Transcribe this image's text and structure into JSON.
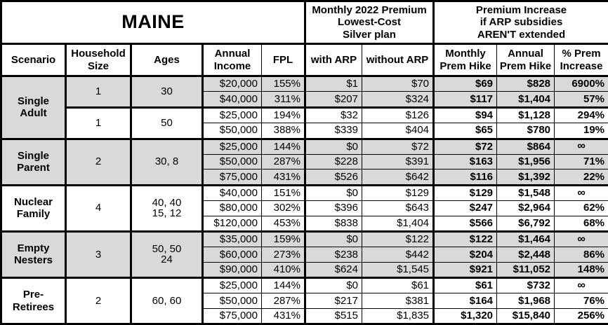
{
  "title": "MAINE",
  "headers": {
    "premium": "Monthly 2022 Premium\nLowest-Cost\nSilver plan",
    "increase": "Premium Increase\nif ARP subsidies\nAREN'T extended"
  },
  "columns": {
    "scenario": "Scenario",
    "household": "Household\nSize",
    "ages": "Ages",
    "income": "Annual\nIncome",
    "fpl": "FPL",
    "with_arp": "with ARP",
    "without_arp": "without ARP",
    "monthly": "Monthly\nPrem Hike",
    "annual": "Annual\nPrem Hike",
    "pct": "% Prem\nIncrease"
  },
  "colors": {
    "shaded_row_bg": "#d9d9d9",
    "unshaded_row_bg": "#ffffff",
    "border": "#000000",
    "text": "#000000"
  },
  "groups": [
    {
      "scenario": "Single\nAdult",
      "subgroups": [
        {
          "household": "1",
          "ages": "30",
          "shaded": true,
          "rows": [
            {
              "income": "$20,000",
              "fpl": "155%",
              "with_arp": "$1",
              "without_arp": "$70",
              "monthly_hike": "$69",
              "annual_hike": "$828",
              "pct_increase": "6900%"
            },
            {
              "income": "$40,000",
              "fpl": "311%",
              "with_arp": "$207",
              "without_arp": "$324",
              "monthly_hike": "$117",
              "annual_hike": "$1,404",
              "pct_increase": "57%"
            }
          ]
        },
        {
          "household": "1",
          "ages": "50",
          "shaded": false,
          "rows": [
            {
              "income": "$25,000",
              "fpl": "194%",
              "with_arp": "$32",
              "without_arp": "$126",
              "monthly_hike": "$94",
              "annual_hike": "$1,128",
              "pct_increase": "294%"
            },
            {
              "income": "$50,000",
              "fpl": "388%",
              "with_arp": "$339",
              "without_arp": "$404",
              "monthly_hike": "$65",
              "annual_hike": "$780",
              "pct_increase": "19%"
            }
          ]
        }
      ]
    },
    {
      "scenario": "Single\nParent",
      "subgroups": [
        {
          "household": "2",
          "ages": "30, 8",
          "shaded": true,
          "rows": [
            {
              "income": "$25,000",
              "fpl": "144%",
              "with_arp": "$0",
              "without_arp": "$72",
              "monthly_hike": "$72",
              "annual_hike": "$864",
              "pct_increase": "∞"
            },
            {
              "income": "$50,000",
              "fpl": "287%",
              "with_arp": "$228",
              "without_arp": "$391",
              "monthly_hike": "$163",
              "annual_hike": "$1,956",
              "pct_increase": "71%"
            },
            {
              "income": "$75,000",
              "fpl": "431%",
              "with_arp": "$526",
              "without_arp": "$642",
              "monthly_hike": "$116",
              "annual_hike": "$1,392",
              "pct_increase": "22%"
            }
          ]
        }
      ]
    },
    {
      "scenario": "Nuclear\nFamily",
      "subgroups": [
        {
          "household": "4",
          "ages": "40, 40\n15, 12",
          "shaded": false,
          "rows": [
            {
              "income": "$40,000",
              "fpl": "151%",
              "with_arp": "$0",
              "without_arp": "$129",
              "monthly_hike": "$129",
              "annual_hike": "$1,548",
              "pct_increase": "∞"
            },
            {
              "income": "$80,000",
              "fpl": "302%",
              "with_arp": "$396",
              "without_arp": "$643",
              "monthly_hike": "$247",
              "annual_hike": "$2,964",
              "pct_increase": "62%"
            },
            {
              "income": "$120,000",
              "fpl": "453%",
              "with_arp": "$838",
              "without_arp": "$1,404",
              "monthly_hike": "$566",
              "annual_hike": "$6,792",
              "pct_increase": "68%"
            }
          ]
        }
      ]
    },
    {
      "scenario": "Empty\nNesters",
      "subgroups": [
        {
          "household": "3",
          "ages": "50, 50\n24",
          "shaded": true,
          "rows": [
            {
              "income": "$35,000",
              "fpl": "159%",
              "with_arp": "$0",
              "without_arp": "$122",
              "monthly_hike": "$122",
              "annual_hike": "$1,464",
              "pct_increase": "∞"
            },
            {
              "income": "$60,000",
              "fpl": "273%",
              "with_arp": "$238",
              "without_arp": "$442",
              "monthly_hike": "$204",
              "annual_hike": "$2,448",
              "pct_increase": "86%"
            },
            {
              "income": "$90,000",
              "fpl": "410%",
              "with_arp": "$624",
              "without_arp": "$1,545",
              "monthly_hike": "$921",
              "annual_hike": "$11,052",
              "pct_increase": "148%"
            }
          ]
        }
      ]
    },
    {
      "scenario": "Pre-\nRetirees",
      "subgroups": [
        {
          "household": "2",
          "ages": "60, 60",
          "shaded": false,
          "rows": [
            {
              "income": "$25,000",
              "fpl": "144%",
              "with_arp": "$0",
              "without_arp": "$61",
              "monthly_hike": "$61",
              "annual_hike": "$732",
              "pct_increase": "∞"
            },
            {
              "income": "$50,000",
              "fpl": "287%",
              "with_arp": "$217",
              "without_arp": "$381",
              "monthly_hike": "$164",
              "annual_hike": "$1,968",
              "pct_increase": "76%"
            },
            {
              "income": "$75,000",
              "fpl": "431%",
              "with_arp": "$515",
              "without_arp": "$1,835",
              "monthly_hike": "$1,320",
              "annual_hike": "$15,840",
              "pct_increase": "256%"
            }
          ]
        }
      ]
    }
  ],
  "chart_data": {
    "type": "table",
    "title": "MAINE",
    "column_groups": [
      "Monthly 2022 Premium Lowest-Cost Silver plan",
      "Premium Increase if ARP subsidies AREN'T extended"
    ],
    "columns": [
      "Scenario",
      "Household Size",
      "Ages",
      "Annual Income",
      "FPL",
      "with ARP",
      "without ARP",
      "Monthly Prem Hike",
      "Annual Prem Hike",
      "% Prem Increase"
    ],
    "rows": [
      [
        "Single Adult",
        "1",
        "30",
        "$20,000",
        "155%",
        "$1",
        "$70",
        "$69",
        "$828",
        "6900%"
      ],
      [
        "Single Adult",
        "1",
        "30",
        "$40,000",
        "311%",
        "$207",
        "$324",
        "$117",
        "$1,404",
        "57%"
      ],
      [
        "Single Adult",
        "1",
        "50",
        "$25,000",
        "194%",
        "$32",
        "$126",
        "$94",
        "$1,128",
        "294%"
      ],
      [
        "Single Adult",
        "1",
        "50",
        "$50,000",
        "388%",
        "$339",
        "$404",
        "$65",
        "$780",
        "19%"
      ],
      [
        "Single Parent",
        "2",
        "30, 8",
        "$25,000",
        "144%",
        "$0",
        "$72",
        "$72",
        "$864",
        "∞"
      ],
      [
        "Single Parent",
        "2",
        "30, 8",
        "$50,000",
        "287%",
        "$228",
        "$391",
        "$163",
        "$1,956",
        "71%"
      ],
      [
        "Single Parent",
        "2",
        "30, 8",
        "$75,000",
        "431%",
        "$526",
        "$642",
        "$116",
        "$1,392",
        "22%"
      ],
      [
        "Nuclear Family",
        "4",
        "40, 40, 15, 12",
        "$40,000",
        "151%",
        "$0",
        "$129",
        "$129",
        "$1,548",
        "∞"
      ],
      [
        "Nuclear Family",
        "4",
        "40, 40, 15, 12",
        "$80,000",
        "302%",
        "$396",
        "$643",
        "$247",
        "$2,964",
        "62%"
      ],
      [
        "Nuclear Family",
        "4",
        "40, 40, 15, 12",
        "$120,000",
        "453%",
        "$838",
        "$1,404",
        "$566",
        "$6,792",
        "68%"
      ],
      [
        "Empty Nesters",
        "3",
        "50, 50, 24",
        "$35,000",
        "159%",
        "$0",
        "$122",
        "$122",
        "$1,464",
        "∞"
      ],
      [
        "Empty Nesters",
        "3",
        "50, 50, 24",
        "$60,000",
        "273%",
        "$238",
        "$442",
        "$204",
        "$2,448",
        "86%"
      ],
      [
        "Empty Nesters",
        "3",
        "50, 50, 24",
        "$90,000",
        "410%",
        "$624",
        "$1,545",
        "$921",
        "$11,052",
        "148%"
      ],
      [
        "Pre-Retirees",
        "2",
        "60, 60",
        "$25,000",
        "144%",
        "$0",
        "$61",
        "$61",
        "$732",
        "∞"
      ],
      [
        "Pre-Retirees",
        "2",
        "60, 60",
        "$50,000",
        "287%",
        "$217",
        "$381",
        "$164",
        "$1,968",
        "76%"
      ],
      [
        "Pre-Retirees",
        "2",
        "60, 60",
        "$75,000",
        "431%",
        "$515",
        "$1,835",
        "$1,320",
        "$15,840",
        "256%"
      ]
    ]
  }
}
